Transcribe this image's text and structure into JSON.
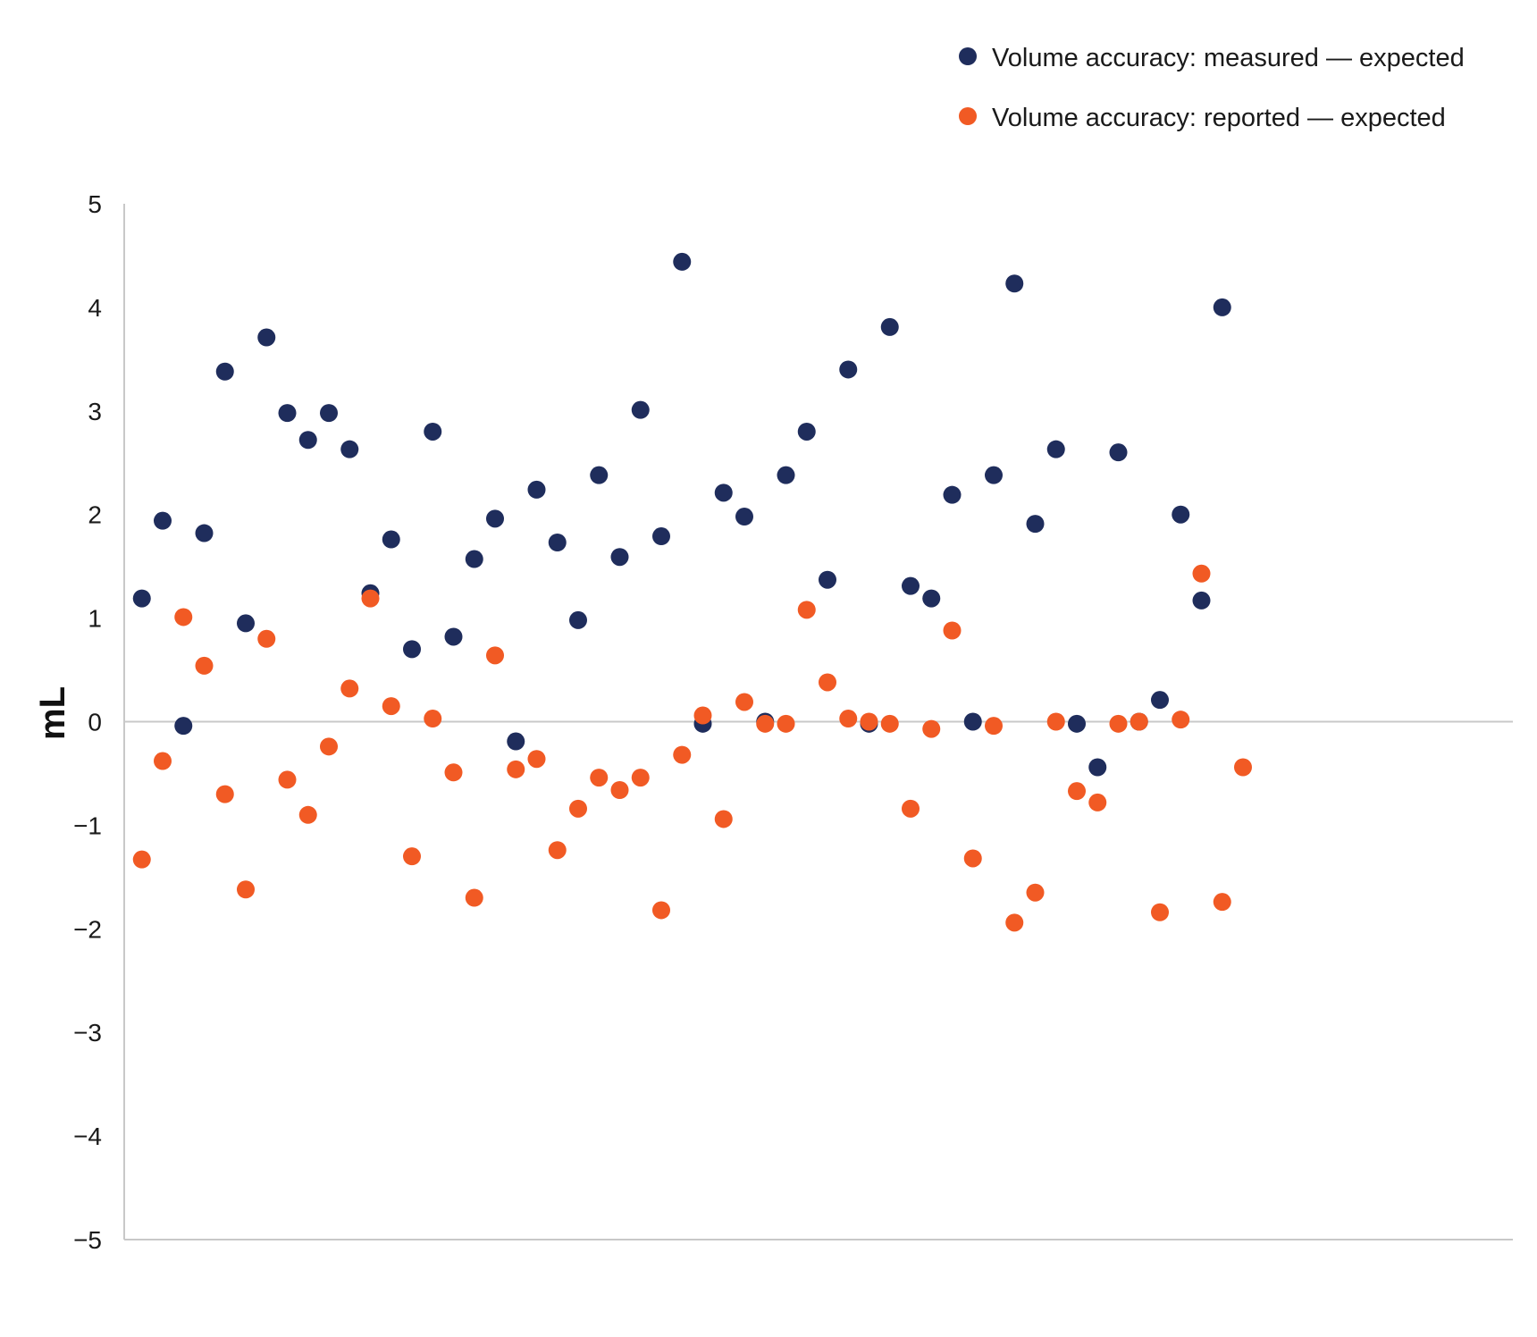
{
  "colors": {
    "measured": "#1f2d5c",
    "reported": "#f15a24",
    "axis": "#c8c8c8",
    "text": "#1a1a1a"
  },
  "chart_data": {
    "type": "scatter",
    "title": "",
    "xlabel": "",
    "ylabel": "mL",
    "ylim": [
      -5,
      5
    ],
    "yticks": [
      "5",
      "4",
      "3",
      "2",
      "1",
      "0",
      "−1",
      "−2",
      "−3",
      "−4",
      "−5"
    ],
    "ytick_values": [
      5,
      4,
      3,
      2,
      1,
      0,
      -1,
      -2,
      -3,
      -4,
      -5
    ],
    "xlim": [
      0,
      68
    ],
    "x_axis_labels_shown": false,
    "grid": false,
    "zero_line": true,
    "legend_position": "top-right",
    "series": [
      {
        "name": "Volume accuracy: measured — expected",
        "color": "#1f2d5c",
        "points": [
          [
            1,
            1.19
          ],
          [
            2,
            1.94
          ],
          [
            3,
            -0.04
          ],
          [
            4,
            1.82
          ],
          [
            5,
            3.38
          ],
          [
            6,
            0.95
          ],
          [
            7,
            3.71
          ],
          [
            8,
            2.98
          ],
          [
            9,
            2.72
          ],
          [
            10,
            2.98
          ],
          [
            11,
            2.63
          ],
          [
            12,
            1.24
          ],
          [
            13,
            1.76
          ],
          [
            14,
            0.7
          ],
          [
            15,
            2.8
          ],
          [
            16,
            0.82
          ],
          [
            17,
            1.57
          ],
          [
            18,
            1.96
          ],
          [
            19,
            -0.19
          ],
          [
            20,
            2.24
          ],
          [
            21,
            1.73
          ],
          [
            22,
            0.98
          ],
          [
            23,
            2.38
          ],
          [
            24,
            1.59
          ],
          [
            25,
            3.01
          ],
          [
            26,
            1.79
          ],
          [
            27,
            4.44
          ],
          [
            28,
            -0.02
          ],
          [
            29,
            2.21
          ],
          [
            30,
            1.98
          ],
          [
            31,
            0.0
          ],
          [
            32,
            2.38
          ],
          [
            33,
            2.8
          ],
          [
            34,
            1.37
          ],
          [
            35,
            3.4
          ],
          [
            36,
            -0.02
          ],
          [
            37,
            3.81
          ],
          [
            38,
            1.31
          ],
          [
            39,
            1.19
          ],
          [
            40,
            2.19
          ],
          [
            41,
            0.0
          ],
          [
            42,
            2.38
          ],
          [
            43,
            4.23
          ],
          [
            44,
            1.91
          ],
          [
            45,
            2.63
          ],
          [
            46,
            -0.02
          ],
          [
            47,
            -0.44
          ],
          [
            48,
            2.6
          ],
          [
            49,
            0.0
          ],
          [
            50,
            0.21
          ],
          [
            51,
            2.0
          ],
          [
            52,
            1.17
          ],
          [
            53,
            4.0
          ]
        ]
      },
      {
        "name": "Volume accuracy: reported — expected",
        "color": "#f15a24",
        "points": [
          [
            1,
            -1.33
          ],
          [
            2,
            -0.38
          ],
          [
            3,
            1.01
          ],
          [
            4,
            0.54
          ],
          [
            5,
            -0.7
          ],
          [
            6,
            -1.62
          ],
          [
            7,
            0.8
          ],
          [
            8,
            -0.56
          ],
          [
            9,
            -0.9
          ],
          [
            10,
            -0.24
          ],
          [
            11,
            0.32
          ],
          [
            12,
            1.19
          ],
          [
            13,
            0.15
          ],
          [
            14,
            -1.3
          ],
          [
            15,
            0.03
          ],
          [
            16,
            -0.49
          ],
          [
            17,
            -1.7
          ],
          [
            18,
            0.64
          ],
          [
            19,
            -0.46
          ],
          [
            20,
            -0.36
          ],
          [
            21,
            -1.24
          ],
          [
            22,
            -0.84
          ],
          [
            23,
            -0.54
          ],
          [
            24,
            -0.66
          ],
          [
            25,
            -0.54
          ],
          [
            26,
            -1.82
          ],
          [
            27,
            -0.32
          ],
          [
            28,
            0.06
          ],
          [
            29,
            -0.94
          ],
          [
            30,
            0.19
          ],
          [
            31,
            -0.02
          ],
          [
            32,
            -0.02
          ],
          [
            33,
            1.08
          ],
          [
            34,
            0.38
          ],
          [
            35,
            0.03
          ],
          [
            36,
            0.0
          ],
          [
            37,
            -0.02
          ],
          [
            38,
            -0.84
          ],
          [
            39,
            -0.07
          ],
          [
            40,
            0.88
          ],
          [
            41,
            -1.32
          ],
          [
            42,
            -0.04
          ],
          [
            43,
            -1.94
          ],
          [
            44,
            -1.65
          ],
          [
            45,
            0.0
          ],
          [
            46,
            -0.67
          ],
          [
            47,
            -0.78
          ],
          [
            48,
            -0.02
          ],
          [
            49,
            0.0
          ],
          [
            50,
            -1.84
          ],
          [
            51,
            0.02
          ],
          [
            52,
            1.43
          ],
          [
            53,
            -1.74
          ],
          [
            54,
            -0.44
          ]
        ]
      }
    ]
  }
}
